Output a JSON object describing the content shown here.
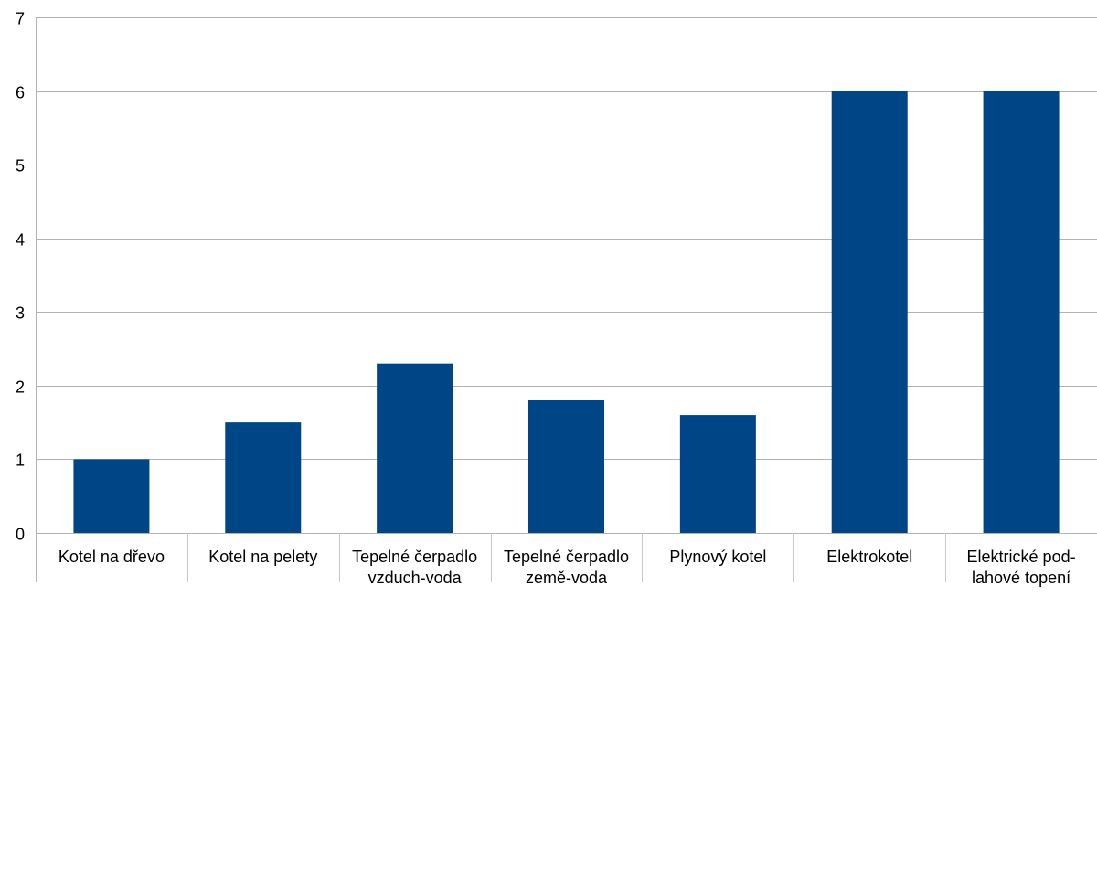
{
  "chart_data": {
    "type": "bar",
    "title": "",
    "xlabel": "",
    "ylabel": "",
    "ylim": [
      0,
      7
    ],
    "yticks": [
      "0",
      "1",
      "2",
      "3",
      "4",
      "5",
      "6",
      "7"
    ],
    "grid": true,
    "legend": "none",
    "bar_color": "#004586",
    "grid_color": "#b3b3b3",
    "categories": [
      [
        "Kotel na dřevo"
      ],
      [
        "Kotel na pelety"
      ],
      [
        "Tepelné čerpadlo",
        "vzduch-voda"
      ],
      [
        "Tepelné čerpadlo",
        "země-voda"
      ],
      [
        "Plynový kotel"
      ],
      [
        "Elektrokotel"
      ],
      [
        "Elektrické pod-",
        "lahové topení"
      ]
    ],
    "values": [
      1,
      1.5,
      2.3,
      1.8,
      1.6,
      6,
      6
    ]
  }
}
